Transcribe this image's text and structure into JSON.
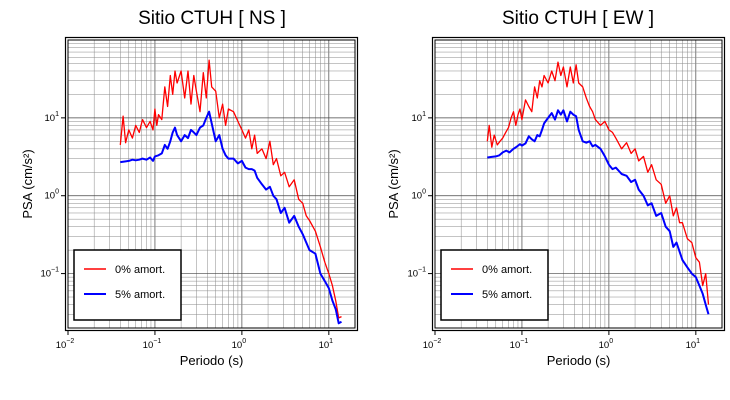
{
  "chart_data": [
    {
      "type": "line",
      "title": "Sitio CTUH [ NS ]",
      "xlabel": "Periodo (s)",
      "ylabel": "PSA (cm/s²)",
      "xscale": "log",
      "yscale": "log",
      "xlim": [
        0.01,
        20
      ],
      "ylim": [
        0.02,
        100
      ],
      "grid": true,
      "legend_position": "bottom-left",
      "x_tick_labels": [
        {
          "base": "10",
          "exp": "−2",
          "value": 0.01
        },
        {
          "base": "10",
          "exp": "−1",
          "value": 0.1
        },
        {
          "base": "10",
          "exp": "0",
          "value": 1
        },
        {
          "base": "10",
          "exp": "1",
          "value": 10
        }
      ],
      "y_tick_labels": [
        {
          "base": "10",
          "exp": "−1",
          "value": 0.1
        },
        {
          "base": "10",
          "exp": "0",
          "value": 1
        },
        {
          "base": "10",
          "exp": "1",
          "value": 10
        }
      ],
      "series": [
        {
          "name": "0% amort.",
          "color": "#ff0000",
          "x": [
            0.04,
            0.043,
            0.046,
            0.05,
            0.055,
            0.06,
            0.066,
            0.072,
            0.08,
            0.088,
            0.095,
            0.1,
            0.105,
            0.11,
            0.12,
            0.13,
            0.14,
            0.15,
            0.16,
            0.17,
            0.18,
            0.2,
            0.22,
            0.24,
            0.26,
            0.28,
            0.3,
            0.33,
            0.36,
            0.39,
            0.42,
            0.45,
            0.5,
            0.55,
            0.6,
            0.65,
            0.7,
            0.8,
            0.9,
            1.0,
            1.1,
            1.2,
            1.3,
            1.4,
            1.5,
            1.7,
            1.9,
            2.1,
            2.3,
            2.5,
            2.8,
            3.1,
            3.5,
            4.0,
            4.5,
            5.0,
            5.5,
            6.0,
            7.0,
            8.0,
            9.0,
            10.0,
            11.0,
            12.0,
            13.0,
            14.0
          ],
          "y": [
            4.5,
            10.5,
            4.8,
            7.0,
            5.5,
            8.0,
            6.5,
            9.5,
            7.5,
            9.0,
            7.0,
            13.0,
            8.0,
            11.0,
            9.5,
            25.0,
            14.0,
            35.0,
            20.0,
            40.0,
            28.0,
            40.0,
            18.0,
            40.0,
            15.0,
            35.0,
            22.0,
            12.0,
            38.0,
            18.0,
            55.0,
            25.0,
            22.0,
            10.0,
            15.0,
            8.0,
            13.0,
            12.0,
            9.0,
            7.0,
            5.5,
            7.0,
            4.0,
            6.0,
            3.5,
            4.0,
            3.0,
            5.0,
            2.5,
            3.0,
            1.8,
            2.0,
            1.3,
            1.6,
            0.9,
            0.8,
            0.55,
            0.48,
            0.35,
            0.22,
            0.14,
            0.1,
            0.07,
            0.045,
            0.027,
            0.028
          ]
        },
        {
          "name": "5% amort.",
          "color": "#0000ff",
          "x": [
            0.04,
            0.045,
            0.05,
            0.055,
            0.06,
            0.066,
            0.072,
            0.08,
            0.088,
            0.095,
            0.1,
            0.11,
            0.12,
            0.13,
            0.14,
            0.15,
            0.16,
            0.17,
            0.18,
            0.2,
            0.22,
            0.24,
            0.26,
            0.28,
            0.3,
            0.33,
            0.36,
            0.39,
            0.42,
            0.45,
            0.5,
            0.55,
            0.6,
            0.65,
            0.7,
            0.8,
            0.9,
            1.0,
            1.1,
            1.2,
            1.3,
            1.4,
            1.5,
            1.7,
            1.9,
            2.1,
            2.3,
            2.5,
            2.8,
            3.1,
            3.5,
            4.0,
            4.5,
            5.0,
            5.5,
            6.0,
            7.0,
            8.0,
            9.0,
            10.0,
            11.0,
            12.0,
            13.0,
            14.0
          ],
          "y": [
            2.7,
            2.75,
            2.8,
            2.9,
            2.85,
            2.9,
            3.0,
            2.9,
            3.1,
            2.8,
            3.2,
            3.3,
            3.5,
            4.5,
            4.0,
            5.0,
            6.5,
            7.5,
            6.0,
            5.0,
            6.0,
            5.5,
            7.0,
            6.5,
            6.0,
            7.5,
            8.0,
            10.0,
            12.0,
            8.5,
            5.0,
            6.0,
            4.0,
            3.3,
            3.0,
            3.0,
            2.6,
            2.8,
            2.3,
            2.2,
            2.2,
            2.1,
            1.7,
            1.4,
            1.2,
            1.3,
            1.0,
            0.9,
            0.6,
            0.7,
            0.45,
            0.55,
            0.4,
            0.32,
            0.25,
            0.2,
            0.18,
            0.1,
            0.08,
            0.065,
            0.045,
            0.035,
            0.023,
            0.024
          ]
        }
      ]
    },
    {
      "type": "line",
      "title": "Sitio CTUH [ EW ]",
      "xlabel": "Periodo (s)",
      "ylabel": "PSA (cm/s²)",
      "xscale": "log",
      "yscale": "log",
      "xlim": [
        0.01,
        20
      ],
      "ylim": [
        0.02,
        100
      ],
      "grid": true,
      "legend_position": "bottom-left",
      "x_tick_labels": [
        {
          "base": "10",
          "exp": "−2",
          "value": 0.01
        },
        {
          "base": "10",
          "exp": "−1",
          "value": 0.1
        },
        {
          "base": "10",
          "exp": "0",
          "value": 1
        },
        {
          "base": "10",
          "exp": "1",
          "value": 10
        }
      ],
      "y_tick_labels": [
        {
          "base": "10",
          "exp": "−1",
          "value": 0.1
        },
        {
          "base": "10",
          "exp": "0",
          "value": 1
        },
        {
          "base": "10",
          "exp": "1",
          "value": 10
        }
      ],
      "series": [
        {
          "name": "0% amort.",
          "color": "#ff0000",
          "x": [
            0.04,
            0.042,
            0.045,
            0.048,
            0.052,
            0.056,
            0.06,
            0.065,
            0.07,
            0.075,
            0.08,
            0.085,
            0.09,
            0.095,
            0.1,
            0.11,
            0.12,
            0.13,
            0.14,
            0.15,
            0.16,
            0.17,
            0.18,
            0.2,
            0.22,
            0.24,
            0.26,
            0.28,
            0.3,
            0.33,
            0.36,
            0.39,
            0.42,
            0.45,
            0.5,
            0.55,
            0.6,
            0.65,
            0.7,
            0.8,
            0.9,
            1.0,
            1.1,
            1.2,
            1.4,
            1.6,
            1.8,
            2.0,
            2.2,
            2.5,
            2.8,
            3.1,
            3.5,
            4.0,
            4.5,
            5.0,
            5.5,
            6.0,
            6.5,
            7.0,
            8.0,
            9.0,
            10.0,
            11.0,
            12.0,
            13.0,
            14.0
          ],
          "y": [
            5.0,
            8.0,
            4.2,
            6.0,
            4.5,
            5.0,
            5.5,
            6.5,
            7.5,
            10.0,
            12.0,
            8.0,
            11.0,
            13.0,
            9.5,
            17.0,
            14.0,
            12.0,
            25.0,
            18.0,
            30.0,
            25.0,
            35.0,
            28.0,
            40.0,
            30.0,
            52.0,
            35.0,
            45.0,
            25.0,
            45.0,
            28.0,
            48.0,
            28.0,
            25.0,
            18.0,
            14.0,
            12.0,
            9.5,
            8.0,
            9.0,
            7.0,
            6.5,
            5.5,
            4.0,
            4.8,
            3.5,
            4.0,
            2.8,
            3.2,
            2.0,
            2.5,
            1.6,
            1.4,
            0.8,
            1.0,
            0.55,
            0.7,
            0.45,
            0.45,
            0.28,
            0.25,
            0.16,
            0.14,
            0.07,
            0.1,
            0.04
          ]
        },
        {
          "name": "5% amort.",
          "color": "#0000ff",
          "x": [
            0.04,
            0.045,
            0.05,
            0.055,
            0.06,
            0.066,
            0.072,
            0.08,
            0.088,
            0.095,
            0.1,
            0.11,
            0.12,
            0.13,
            0.14,
            0.15,
            0.16,
            0.17,
            0.18,
            0.2,
            0.22,
            0.24,
            0.26,
            0.28,
            0.3,
            0.33,
            0.36,
            0.39,
            0.42,
            0.45,
            0.5,
            0.55,
            0.6,
            0.65,
            0.7,
            0.8,
            0.9,
            1.0,
            1.1,
            1.2,
            1.4,
            1.6,
            1.8,
            2.0,
            2.2,
            2.5,
            2.8,
            3.1,
            3.5,
            4.0,
            4.5,
            5.0,
            5.5,
            6.0,
            7.0,
            8.0,
            9.0,
            10.0,
            11.0,
            12.0,
            13.0,
            14.0
          ],
          "y": [
            3.1,
            3.15,
            3.2,
            3.3,
            3.6,
            3.8,
            3.6,
            4.0,
            4.3,
            4.6,
            4.4,
            4.7,
            5.8,
            5.3,
            5.0,
            6.0,
            5.8,
            7.0,
            8.5,
            10.0,
            11.5,
            9.5,
            12.5,
            11.0,
            12.5,
            9.0,
            12.0,
            11.0,
            10.5,
            7.0,
            5.0,
            4.8,
            5.0,
            4.3,
            4.5,
            4.0,
            3.2,
            2.5,
            2.2,
            2.3,
            1.9,
            1.8,
            1.5,
            1.6,
            1.2,
            1.0,
            0.75,
            0.8,
            0.55,
            0.6,
            0.4,
            0.35,
            0.22,
            0.25,
            0.15,
            0.12,
            0.1,
            0.09,
            0.07,
            0.055,
            0.04,
            0.03
          ]
        }
      ]
    }
  ]
}
